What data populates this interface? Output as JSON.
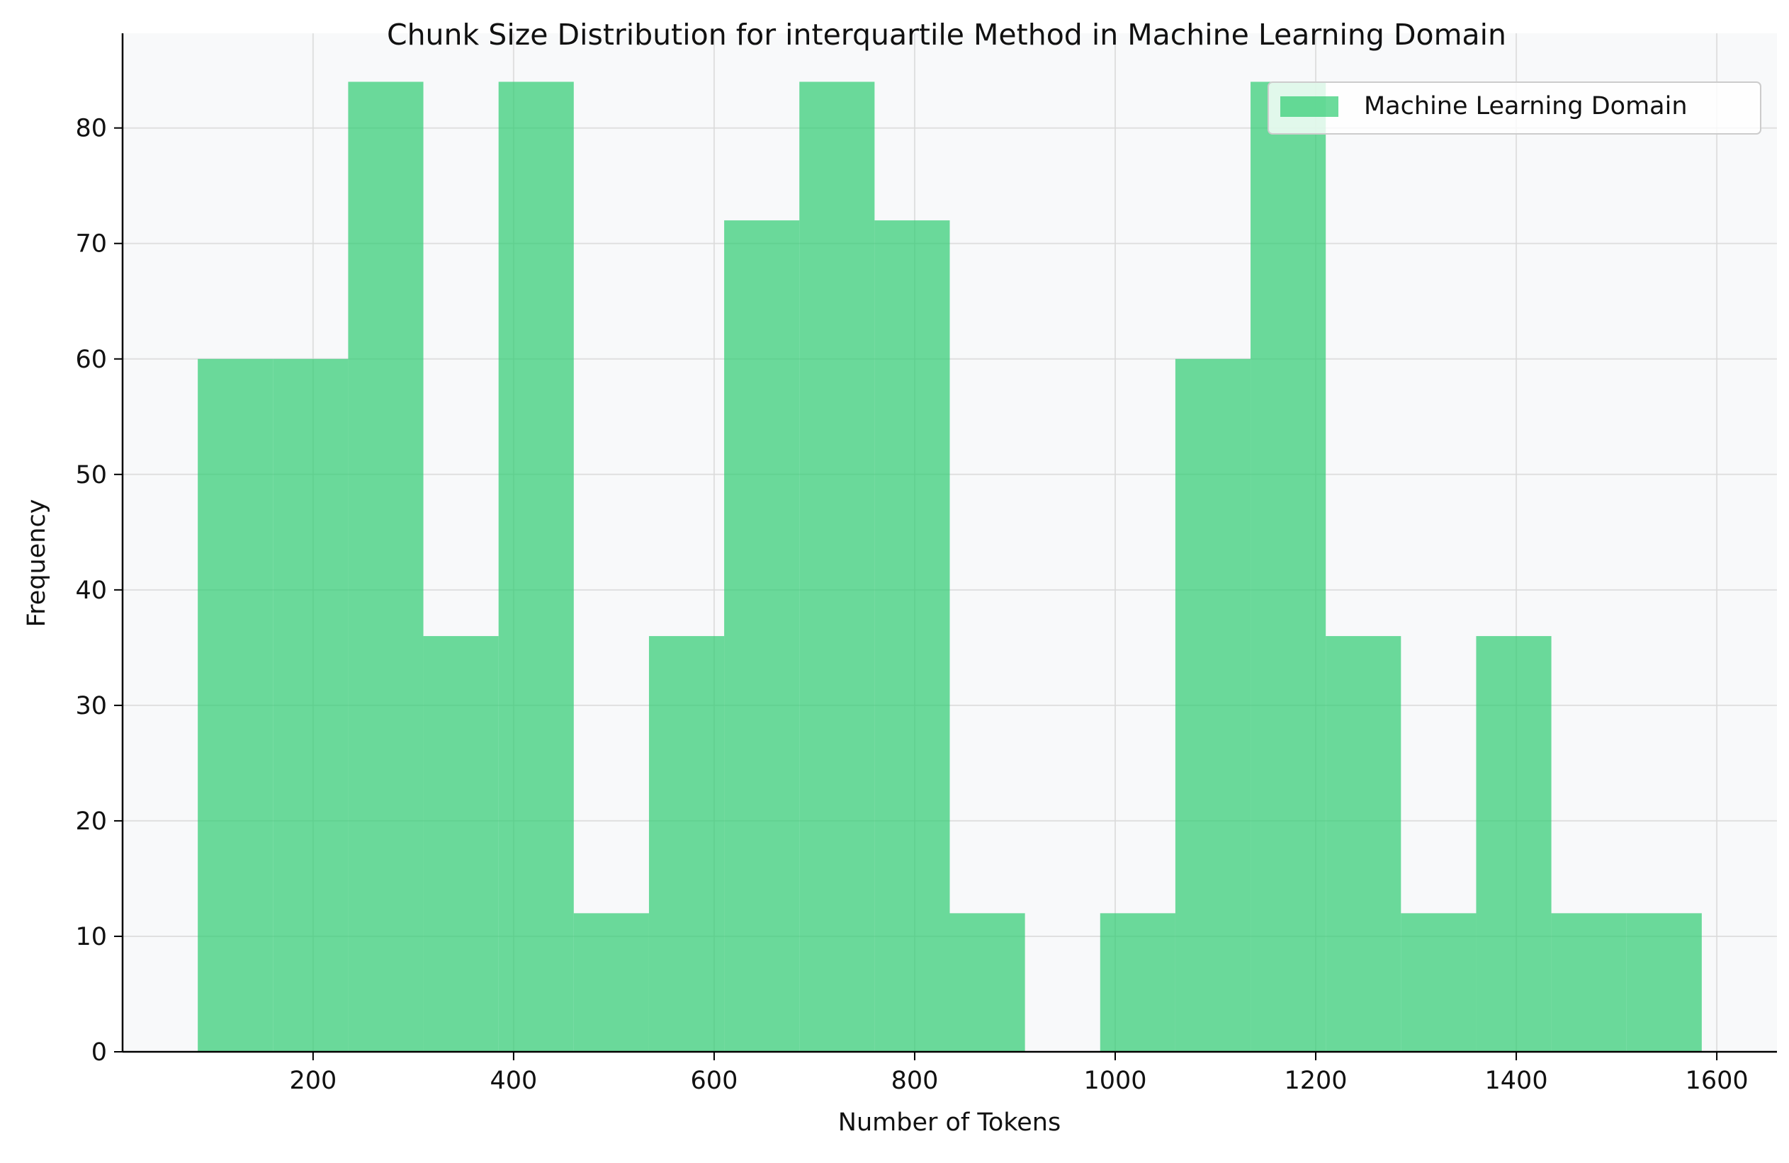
{
  "chart_data": {
    "type": "bar",
    "subtype": "histogram",
    "title": "Chunk Size Distribution for interquartile Method in Machine Learning Domain",
    "xlabel": "Number of Tokens",
    "ylabel": "Frequency",
    "xlim": [
      10,
      1660
    ],
    "ylim": [
      0,
      88.2
    ],
    "x_ticks": [
      200,
      400,
      600,
      800,
      1000,
      1200,
      1400,
      1600
    ],
    "y_ticks": [
      0,
      10,
      20,
      30,
      40,
      50,
      60,
      70,
      80
    ],
    "grid": true,
    "legend_position": "top-right",
    "colors": {
      "bar": "#2ecc71",
      "bar_opacity": 0.7,
      "plot_background": "#f8f9fa",
      "grid": "#d9d9d9",
      "axis": "#000000"
    },
    "series": [
      {
        "name": "Machine Learning Domain",
        "bin_edges": [
          85,
          160,
          235,
          310,
          385,
          460,
          535,
          610,
          685,
          760,
          835,
          910,
          985,
          1060,
          1135,
          1210,
          1285,
          1360,
          1435,
          1510,
          1585
        ],
        "values": [
          60,
          60,
          84,
          36,
          84,
          12,
          36,
          72,
          84,
          72,
          12,
          0,
          12,
          60,
          84,
          36,
          12,
          36,
          12,
          12
        ]
      }
    ]
  }
}
